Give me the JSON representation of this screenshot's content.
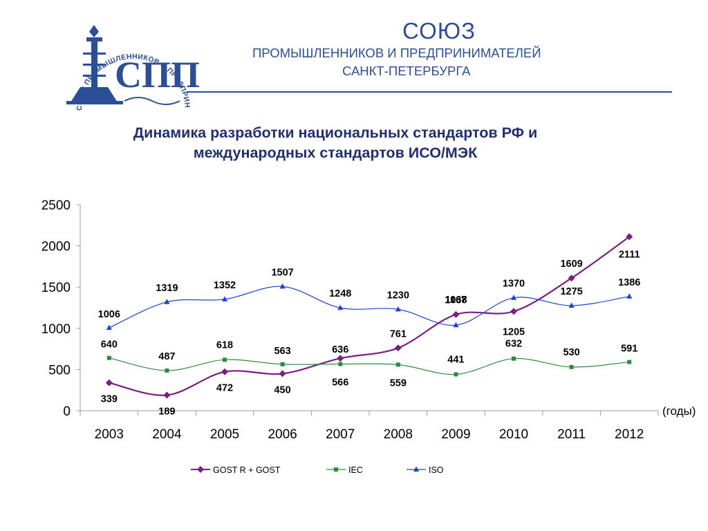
{
  "header": {
    "org_name": "СОЮЗ",
    "org_line1": "ПРОМЫШЛЕННИКОВ И ПРЕДПРИНИМАТЕЛЕЙ",
    "org_line2": "САНКТ-ПЕТЕРБУРГА",
    "logo": {
      "ring_text": "СОЮЗ ПРОМЫШЛЕННИКОВ И ПРЕДПРИНИМАТЕЛЕЙ САНКТ-ПЕТЕРБУРГА",
      "monogram_letters": "СПП",
      "icon": "rostral-column-icon"
    },
    "colors": {
      "brand": "#2c4e94"
    }
  },
  "title_lines": [
    "Динамика разработки национальных стандартов РФ и",
    "международных стандартов ИСО/МЭК"
  ],
  "chart_data": {
    "type": "line",
    "categories": [
      "2003",
      "2004",
      "2005",
      "2006",
      "2007",
      "2008",
      "2009",
      "2010",
      "2011",
      "2012"
    ],
    "x_unit_label": "(годы)",
    "ylim": [
      0,
      2500
    ],
    "y_ticks": [
      "0",
      "500",
      "1000",
      "1500",
      "2000",
      "2500"
    ],
    "grid": false,
    "legend_position": "bottom",
    "series": [
      {
        "name": "GOST R + GOST",
        "color": "#7b1f7e",
        "marker": "diamond",
        "values": [
          339,
          189,
          472,
          450,
          636,
          761,
          1167,
          1205,
          1609,
          2111
        ],
        "labels": [
          "339",
          "189",
          "472",
          "450",
          "636",
          "761",
          "1167",
          "1205",
          "1609",
          "2111"
        ]
      },
      {
        "name": "IEC",
        "color": "#2e8b3e",
        "marker": "square",
        "values": [
          640,
          487,
          618,
          563,
          566,
          559,
          441,
          632,
          530,
          591
        ],
        "labels": [
          "640",
          "487",
          "618",
          "563",
          "566",
          "559",
          "441",
          "632",
          "530",
          "591"
        ]
      },
      {
        "name": "ISO",
        "color": "#1c3fd6",
        "marker": "triangle",
        "values": [
          1006,
          1319,
          1352,
          1507,
          1248,
          1230,
          1038,
          1370,
          1275,
          1386
        ],
        "labels": [
          "1006",
          "1319",
          "1352",
          "1507",
          "1248",
          "1230",
          "1038",
          "1370",
          "1275",
          "1386"
        ]
      }
    ]
  }
}
